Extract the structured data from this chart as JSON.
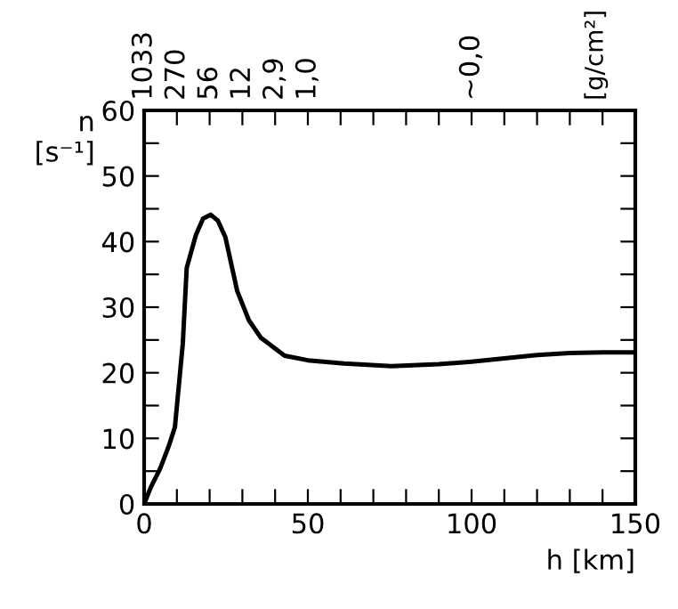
{
  "chart_data": {
    "type": "line",
    "xlabel": "h [km]",
    "ylabel": "n\n[s⁻¹]",
    "annotations": [
      "1033",
      "270",
      "56",
      "12",
      "2,9",
      "1,0",
      "~0,0",
      "[g/cm²]"
    ],
    "series": [
      {
        "color": "#000000",
        "x": [
          0,
          2,
          4.9,
          7.5,
          9.4,
          11.8,
          13,
          15.8,
          18,
          20.3,
          22.5,
          24.8,
          28.4,
          32,
          35.7,
          42.9,
          50,
          61,
          75.5,
          90,
          100,
          110,
          120,
          130,
          140,
          150
        ],
        "values": [
          0,
          2.5,
          5.4,
          8.8,
          11.7,
          24.4,
          36,
          41,
          43.5,
          44.1,
          43.2,
          40.7,
          32.5,
          28,
          25.3,
          22.6,
          21.9,
          21.4,
          21,
          21.3,
          21.7,
          22.2,
          22.7,
          23,
          23.1,
          23.1
        ]
      }
    ],
    "xlim": [
      0,
      150
    ],
    "ylim": [
      0,
      60
    ],
    "xticks": [
      0,
      {
        "value": 10,
        "label": null
      },
      {
        "value": 20,
        "label": null
      },
      {
        "value": 30,
        "label": null
      },
      {
        "value": 40,
        "label": null
      },
      50,
      {
        "value": 60,
        "label": null
      },
      {
        "value": 70,
        "label": null
      },
      {
        "value": 80,
        "label": null
      },
      {
        "value": 90,
        "label": null
      },
      100,
      {
        "value": 110,
        "label": null
      },
      {
        "value": 120,
        "label": null
      },
      {
        "value": 130,
        "label": null
      },
      {
        "value": 140,
        "label": null
      },
      150
    ],
    "yticks": [
      0,
      {
        "value": 5,
        "label": null
      },
      10,
      {
        "value": 15,
        "label": null
      },
      20,
      {
        "value": 25,
        "label": null
      },
      30,
      {
        "value": 35,
        "label": null
      },
      40,
      {
        "value": 45,
        "label": null
      },
      50,
      {
        "value": 55,
        "label": null
      },
      60
    ],
    "grid": false,
    "legend": false,
    "marker": "none",
    "line_style": "solid"
  }
}
